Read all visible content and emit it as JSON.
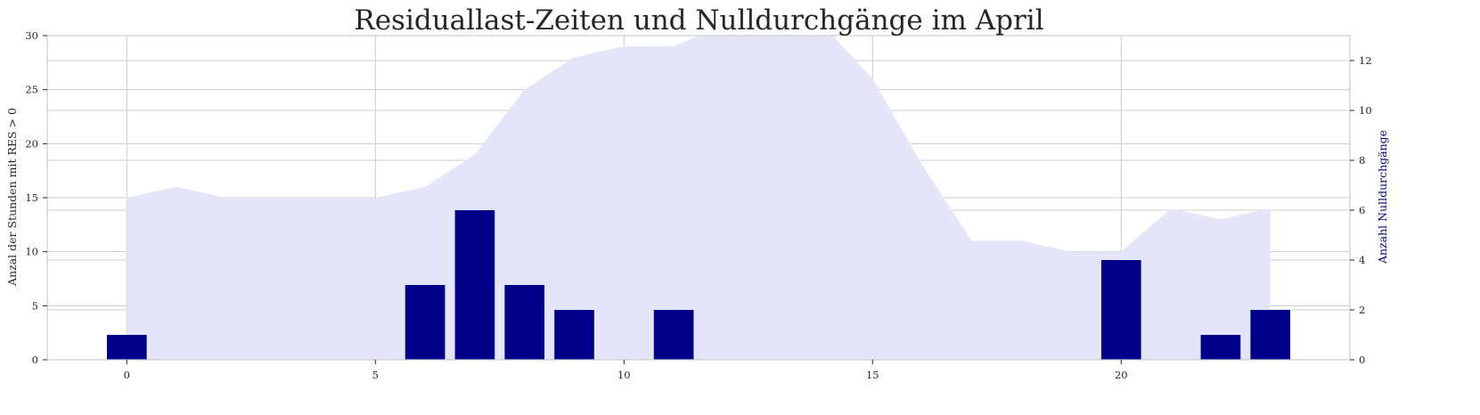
{
  "chart_data": {
    "type": "bar",
    "title": "Residuallast-Zeiten und Nulldurchgänge im April",
    "xlabel": "",
    "ylabel_left": "Anzal der Stunden mit RES > 0",
    "ylabel_right": "Anzahl Nulldurchgänge",
    "xlim": [
      -1.6,
      24.6
    ],
    "ylim_left": [
      0,
      30
    ],
    "ylim_right": [
      0,
      13
    ],
    "x_ticks": [
      0,
      5,
      10,
      15,
      20
    ],
    "y_ticks_left": [
      0,
      5,
      10,
      15,
      20,
      25,
      30
    ],
    "y_ticks_right": [
      0,
      2,
      4,
      6,
      8,
      10,
      12
    ],
    "grid": true,
    "colors": {
      "area": "#e4e5f8",
      "bars": "#00008b",
      "grid": "#cccccc",
      "spine": "#cccccc",
      "text": "#262626",
      "right_label": "#00008b"
    },
    "area_series": {
      "axis": "left",
      "x": [
        0,
        1,
        2,
        3,
        4,
        5,
        6,
        7,
        8,
        9,
        10,
        11,
        12,
        13,
        14,
        15,
        16,
        17,
        18,
        19,
        20,
        21,
        22,
        23
      ],
      "values": [
        15,
        16,
        15,
        15,
        15,
        15,
        16,
        19,
        25,
        28,
        29,
        29,
        31,
        31,
        31,
        26,
        18,
        11,
        11,
        10,
        10,
        14,
        13,
        14
      ]
    },
    "bar_series": {
      "axis": "right",
      "x": [
        0,
        1,
        2,
        3,
        4,
        5,
        6,
        7,
        8,
        9,
        10,
        11,
        12,
        13,
        14,
        15,
        16,
        17,
        18,
        19,
        20,
        21,
        22,
        23
      ],
      "values": [
        1,
        0,
        0,
        0,
        0,
        0,
        3,
        6,
        3,
        2,
        0,
        2,
        0,
        0,
        0,
        0,
        0,
        0,
        0,
        0,
        4,
        0,
        1,
        2
      ]
    }
  }
}
